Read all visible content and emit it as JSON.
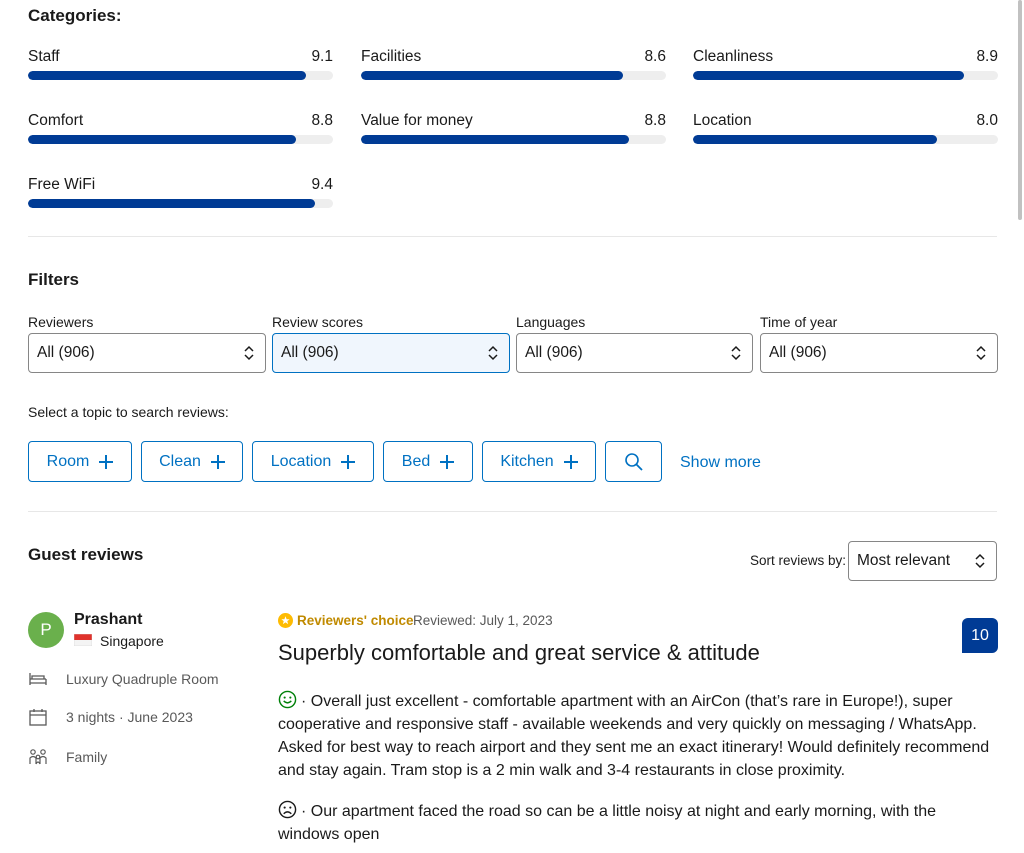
{
  "categories": {
    "title": "Categories:",
    "bar_color": "#003b95",
    "items": [
      {
        "name": "Staff",
        "score": "9.1",
        "percent": 91
      },
      {
        "name": "Facilities",
        "score": "8.6",
        "percent": 86
      },
      {
        "name": "Cleanliness",
        "score": "8.9",
        "percent": 89
      },
      {
        "name": "Comfort",
        "score": "8.8",
        "percent": 88
      },
      {
        "name": "Value for money",
        "score": "8.8",
        "percent": 88
      },
      {
        "name": "Location",
        "score": "8.0",
        "percent": 80
      },
      {
        "name": "Free WiFi",
        "score": "9.4",
        "percent": 94
      }
    ]
  },
  "filters": {
    "title": "Filters",
    "reviewers": {
      "label": "Reviewers",
      "value": "All (906)"
    },
    "review_scores": {
      "label": "Review scores",
      "value": "All (906)"
    },
    "languages": {
      "label": "Languages",
      "value": "All (906)"
    },
    "time_of_year": {
      "label": "Time of year",
      "value": "All (906)"
    }
  },
  "topics": {
    "prompt": "Select a topic to search reviews:",
    "items": [
      "Room",
      "Clean",
      "Location",
      "Bed",
      "Kitchen"
    ],
    "show_more": "Show more"
  },
  "guest_reviews": {
    "title": "Guest reviews",
    "sort_label": "Sort reviews by:",
    "sort_value": "Most relevant"
  },
  "review": {
    "reviewer_initial": "P",
    "reviewer_name": "Prashant",
    "country": "Singapore",
    "room": "Luxury Quadruple Room",
    "stay_nights": "3 nights",
    "stay_separator": "·",
    "stay_date": "June 2023",
    "traveler_type": "Family",
    "badge": "Reviewers' choice",
    "reviewed_date": "Reviewed: July 1, 2023",
    "headline": "Superbly comfortable and great service & attitude",
    "score": "10",
    "positive_text": "· Overall just excellent - comfortable apartment with an AirCon (that’s rare in Europe!), super cooperative and responsive staff - available weekends and very quickly on messaging / WhatsApp. Asked for best way to reach airport and they sent me an exact itinerary! Would definitely recommend and stay again. Tram stop is a 2 min walk and 3-4 restaurants in close proximity.",
    "negative_text": "· Our apartment faced the road so can be a little noisy at night and early morning, with the windows open"
  },
  "colors": {
    "accent": "#0071c2",
    "score_badge": "#003b95",
    "avatar": "#6ab04c",
    "badge_gold": "#febb02",
    "badge_text": "#c08a00",
    "positive_icon": "#008009"
  }
}
